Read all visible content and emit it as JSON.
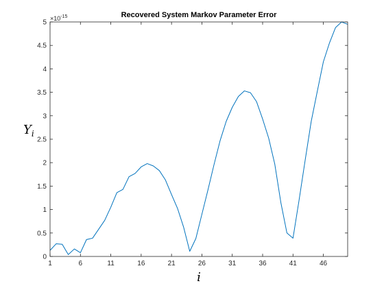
{
  "chart_data": {
    "type": "line",
    "title": "Recovered System Markov Parameter Error",
    "xlabel": "i",
    "ylabel": {
      "base": "Y",
      "subscript": "i"
    },
    "xlim": [
      1,
      50
    ],
    "ylim": [
      0,
      5
    ],
    "y_exponent_label": "×10",
    "y_exponent_power": "-15",
    "x_ticks": [
      1,
      6,
      11,
      16,
      21,
      26,
      31,
      36,
      41,
      46
    ],
    "x_tick_labels": [
      "1",
      "6",
      "11",
      "16",
      "21",
      "26",
      "31",
      "36",
      "41",
      "46"
    ],
    "y_ticks": [
      0,
      0.5,
      1,
      1.5,
      2,
      2.5,
      3,
      3.5,
      4,
      4.5,
      5
    ],
    "y_tick_labels": [
      "0",
      "0.5",
      "1",
      "1.5",
      "2",
      "2.5",
      "3",
      "3.5",
      "4",
      "4.5",
      "5"
    ],
    "grid": false,
    "line_color": "#0072BD",
    "series": [
      {
        "x": [
          1,
          2,
          3,
          4,
          5,
          6,
          7,
          8,
          9,
          10,
          11,
          12,
          13,
          14,
          15,
          16,
          17,
          18,
          19,
          20,
          21,
          22,
          23,
          24,
          25,
          26,
          27,
          28,
          29,
          30,
          31,
          32,
          33,
          34,
          35,
          36,
          37,
          38,
          39,
          40,
          41,
          42,
          43,
          44,
          45,
          46,
          47,
          48,
          49,
          50
        ],
        "values": [
          0.13,
          0.27,
          0.26,
          0.04,
          0.16,
          0.08,
          0.36,
          0.39,
          0.58,
          0.77,
          1.05,
          1.36,
          1.43,
          1.7,
          1.77,
          1.91,
          1.98,
          1.93,
          1.83,
          1.63,
          1.32,
          1.02,
          0.62,
          0.11,
          0.38,
          0.9,
          1.42,
          1.96,
          2.47,
          2.88,
          3.18,
          3.41,
          3.53,
          3.49,
          3.3,
          2.93,
          2.52,
          1.97,
          1.15,
          0.5,
          0.39,
          1.2,
          2.05,
          2.88,
          3.52,
          4.15,
          4.55,
          4.88,
          5.0,
          4.95
        ]
      }
    ]
  }
}
